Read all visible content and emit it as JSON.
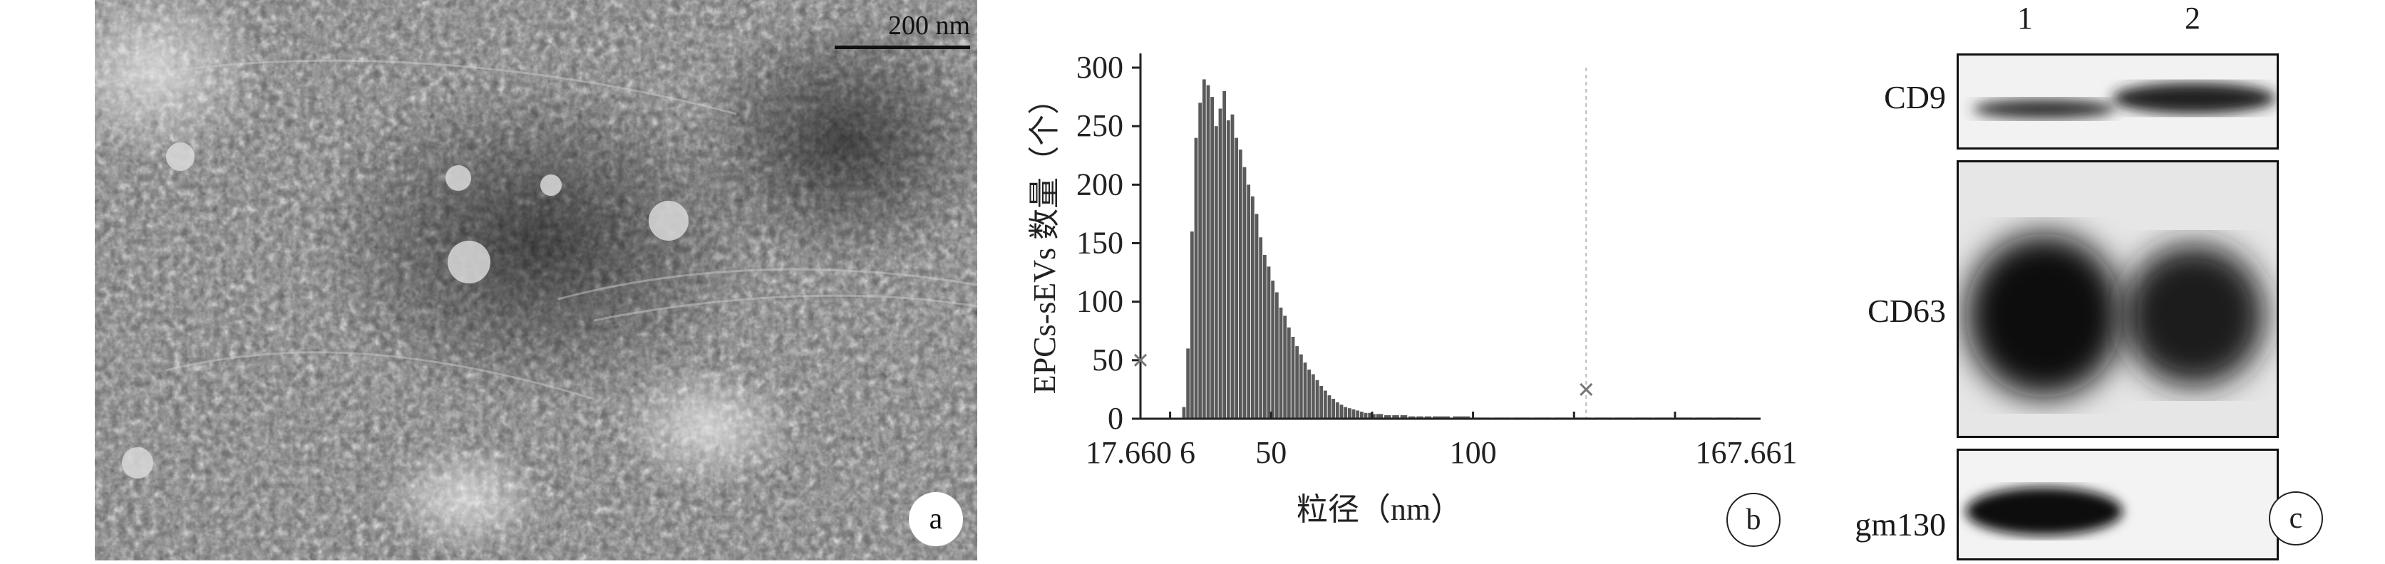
{
  "panel_a": {
    "scale_bar_label": "200 nm",
    "panel_label": "a"
  },
  "panel_b": {
    "panel_label": "b",
    "chart_data": {
      "type": "bar",
      "xlabel": "粒径（nm）",
      "ylabel": "EPCs-sEVs 数量（个）",
      "xlim": [
        17.6606,
        167.661
      ],
      "ylim": [
        0,
        300
      ],
      "x_ticks": [
        "17.660 6",
        "50",
        "100",
        "167.661"
      ],
      "y_ticks": [
        0,
        50,
        100,
        150,
        200,
        250,
        300
      ],
      "markers": [
        {
          "x": 17.6606,
          "y": 50
        },
        {
          "x": 128,
          "y": 25
        }
      ],
      "x": [
        28,
        29,
        30,
        31,
        32,
        33,
        34,
        35,
        36,
        37,
        38,
        39,
        40,
        41,
        42,
        43,
        44,
        45,
        46,
        47,
        48,
        49,
        50,
        51,
        52,
        53,
        54,
        55,
        56,
        57,
        58,
        59,
        60,
        61,
        62,
        63,
        64,
        65,
        66,
        67,
        68,
        69,
        70,
        71,
        72,
        73,
        74,
        75,
        76,
        78,
        80,
        82,
        84,
        86,
        88,
        90,
        95,
        100,
        105,
        110,
        115,
        120,
        125,
        130,
        135,
        140,
        145,
        150,
        155,
        160,
        165
      ],
      "values": [
        10,
        60,
        160,
        240,
        270,
        290,
        285,
        275,
        250,
        265,
        280,
        255,
        260,
        240,
        230,
        215,
        200,
        190,
        175,
        155,
        140,
        130,
        118,
        108,
        95,
        88,
        78,
        70,
        62,
        55,
        48,
        42,
        38,
        33,
        28,
        24,
        20,
        17,
        14,
        12,
        10,
        9,
        8,
        7,
        6,
        5,
        5,
        4,
        4,
        3,
        3,
        3,
        2,
        2,
        2,
        2,
        2,
        1,
        1,
        1,
        1,
        1,
        1,
        1,
        1,
        1,
        1,
        1,
        1,
        1,
        1
      ]
    }
  },
  "panel_c": {
    "panel_label": "c",
    "lanes": [
      "1",
      "2"
    ],
    "bands": [
      "CD9",
      "CD63",
      "gm130"
    ]
  }
}
